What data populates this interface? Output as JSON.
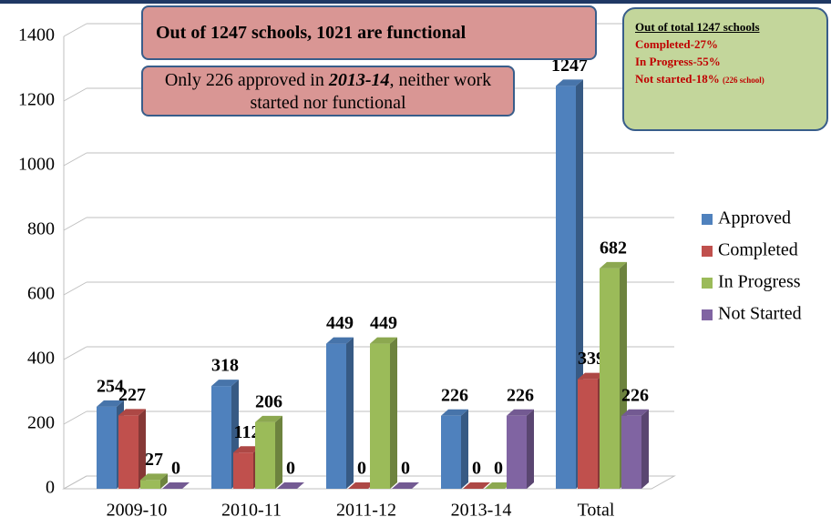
{
  "chart_data": {
    "type": "bar3d",
    "categories": [
      "2009-10",
      "2010-11",
      "2011-12",
      "2013-14",
      "Total"
    ],
    "series": [
      {
        "name": "Approved",
        "color": "#4f81bd",
        "values": [
          254,
          318,
          449,
          226,
          1247
        ]
      },
      {
        "name": "Completed",
        "color": "#c0504d",
        "values": [
          227,
          112,
          0,
          0,
          339
        ]
      },
      {
        "name": "In Progress",
        "color": "#9bbb59",
        "values": [
          27,
          206,
          449,
          0,
          682
        ]
      },
      {
        "name": "Not Started",
        "color": "#8064a2",
        "values": [
          0,
          0,
          0,
          226,
          226
        ]
      }
    ],
    "ylim": [
      0,
      1400
    ],
    "yticks": [
      0,
      200,
      400,
      600,
      800,
      1000,
      1200,
      1400
    ],
    "grid": true,
    "legend": "right",
    "annotations": [
      {
        "text": "Out of 1247 schools, 1021 are functional"
      },
      {
        "parts": [
          "Only 226 approved in ",
          "2013-14",
          ", neither work started nor functional"
        ]
      },
      {
        "title": "Out of total 1247 schools",
        "lines": [
          "Completed-27%",
          "In Progress-55%",
          "Not started-18%"
        ],
        "note": "(226 school)"
      }
    ]
  }
}
